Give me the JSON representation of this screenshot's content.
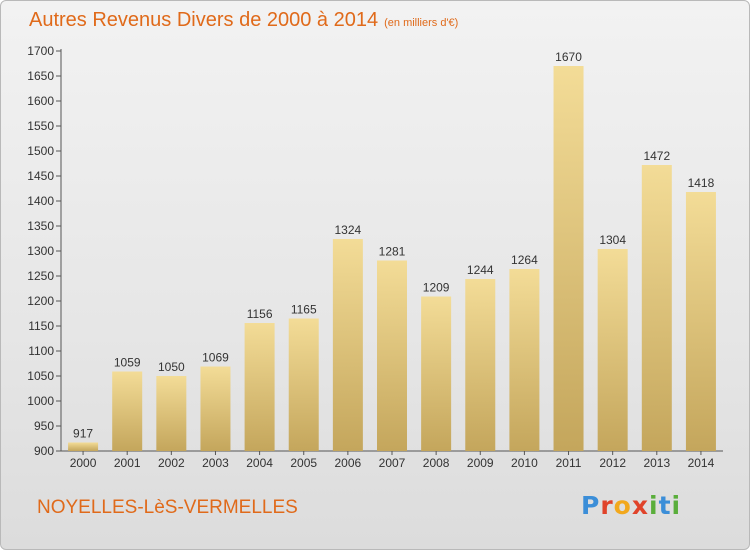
{
  "header": {
    "title": "Autres Revenus Divers de 2000 à 2014",
    "subtitle": "(en milliers d'€)"
  },
  "footer": {
    "place": "NOYELLES-LèS-VERMELLES",
    "logo_letters": [
      "P",
      "r",
      "o",
      "x",
      "i",
      "t",
      "i"
    ],
    "logo_colors": [
      "#3b8ed8",
      "#e0432a",
      "#f2a81d",
      "#e0432a",
      "#5aae3b",
      "#3b8ed8",
      "#5aae3b"
    ]
  },
  "colors": {
    "accent": "#e06a1a",
    "bar_light": "#f3dc97",
    "bar_dark": "#c4a65c"
  },
  "chart_data": {
    "type": "bar",
    "categories": [
      "2000",
      "2001",
      "2002",
      "2003",
      "2004",
      "2005",
      "2006",
      "2007",
      "2008",
      "2009",
      "2010",
      "2011",
      "2012",
      "2013",
      "2014"
    ],
    "values": [
      917,
      1059,
      1050,
      1069,
      1156,
      1165,
      1324,
      1281,
      1209,
      1244,
      1264,
      1670,
      1304,
      1472,
      1418
    ],
    "yticks": [
      900,
      950,
      1000,
      1050,
      1100,
      1150,
      1200,
      1250,
      1300,
      1350,
      1400,
      1450,
      1500,
      1550,
      1600,
      1650,
      1700
    ],
    "ylim": [
      900,
      1700
    ],
    "grid": false,
    "data_labels": true
  }
}
